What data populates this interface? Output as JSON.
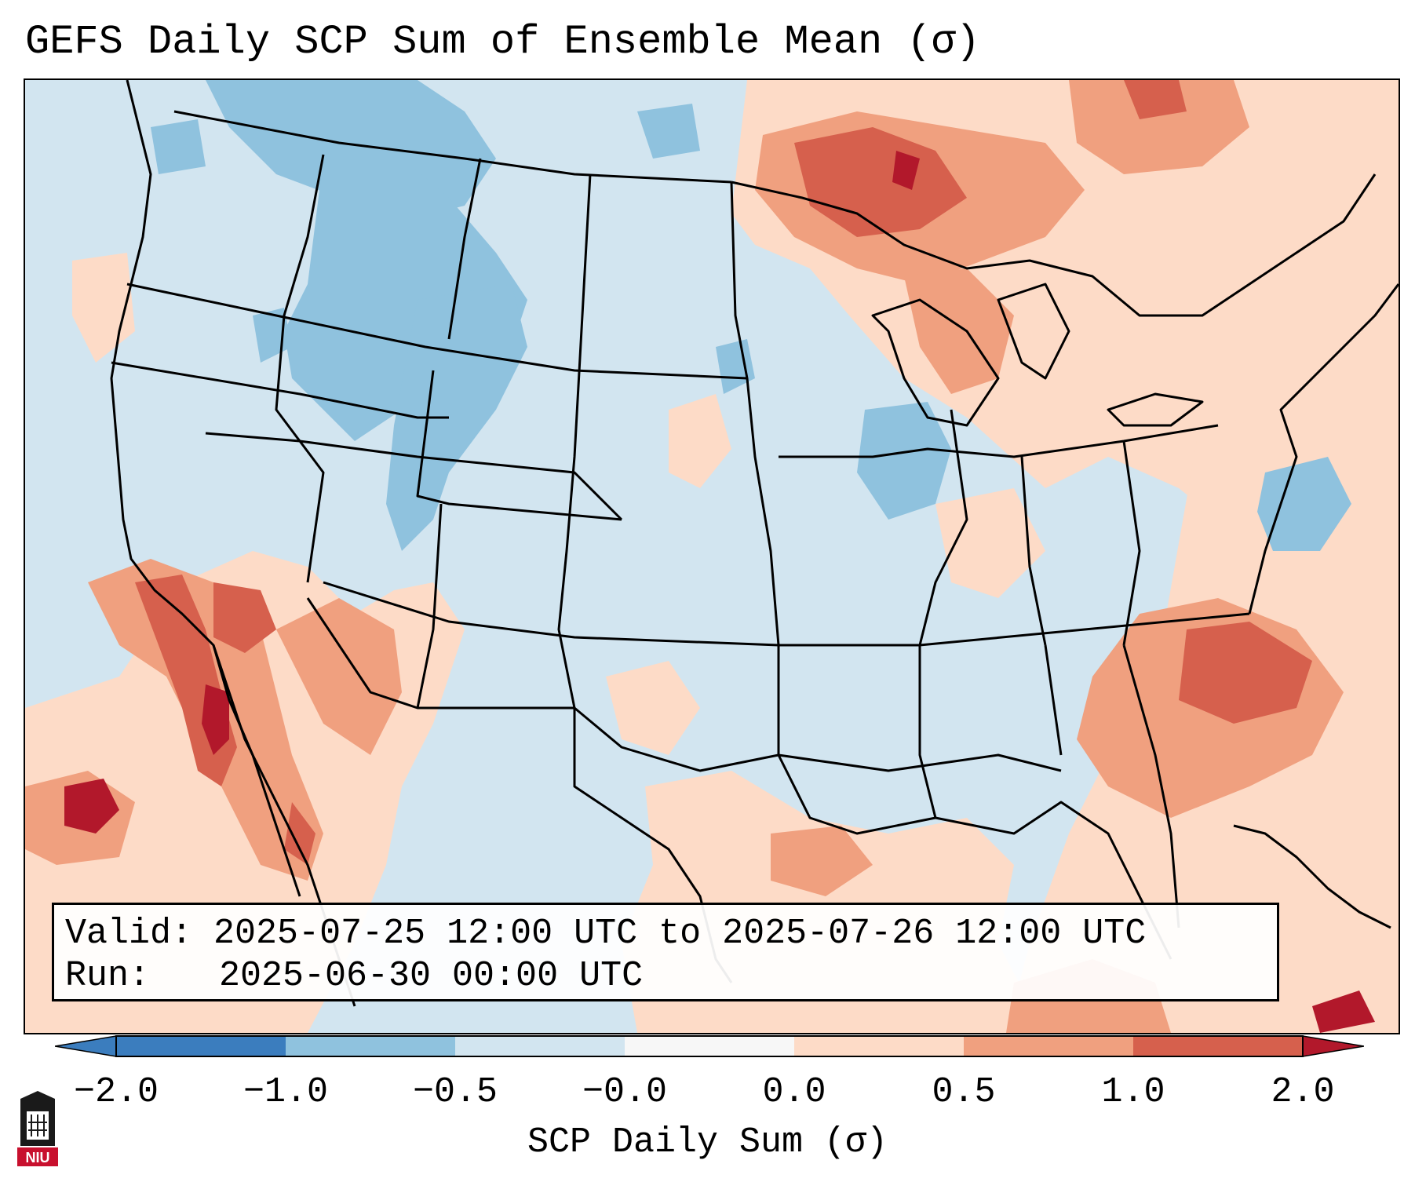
{
  "title": "GEFS Daily SCP Sum of Ensemble Mean (σ)",
  "info": {
    "valid_label": "Valid:",
    "valid_value": "2025-07-25 12:00 UTC to 2025-07-26 12:00 UTC",
    "run_label": "Run:",
    "run_value": "2025-06-30 00:00 UTC"
  },
  "colorbar": {
    "label": "SCP Daily Sum (σ)",
    "ticks": [
      "−2.0",
      "−1.0",
      "−0.5",
      "−0.0",
      "0.0",
      "0.5",
      "1.0",
      "2.0"
    ],
    "colors": [
      "#3b7dbe",
      "#8fc2de",
      "#d2e5f0",
      "#f7f7f7",
      "#fddbc7",
      "#f0a07f",
      "#d6604d",
      "#b2182b"
    ]
  },
  "logo": {
    "text": "NIU",
    "icon": "niu-logo-icon"
  },
  "map": {
    "background_field": "#d2e5f0",
    "outside_domain": "#ffffff"
  }
}
